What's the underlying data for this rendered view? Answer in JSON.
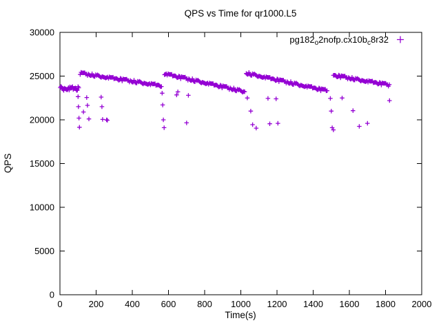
{
  "page": {
    "title": "QPS vs Time for qr1000.L5"
  },
  "chart_data": {
    "type": "scatter",
    "title": "QPS vs Time for qr1000.L5",
    "xlabel": "Time(s)",
    "ylabel": "QPS",
    "xlim": [
      0,
      2000
    ],
    "ylim": [
      0,
      30000
    ],
    "xticks": [
      0,
      200,
      400,
      600,
      800,
      1000,
      1200,
      1400,
      1600,
      1800,
      2000
    ],
    "yticks": [
      0,
      5000,
      10000,
      15000,
      20000,
      25000,
      30000
    ],
    "grid": false,
    "legend": {
      "label": "pg182_o2nofp.cx10b_c8r32",
      "parts": [
        {
          "t": "pg182",
          "sub": false
        },
        {
          "t": "o",
          "sub": true
        },
        {
          "t": "2nofp.cx10b",
          "sub": false
        },
        {
          "t": "c",
          "sub": true
        },
        {
          "t": "8r32",
          "sub": false
        }
      ],
      "position": "top-right-inside"
    },
    "marker": {
      "shape": "plus",
      "color": "#9400D3",
      "size": 6.5
    },
    "jitter": [
      40,
      -110,
      70,
      140,
      -60,
      -140,
      20,
      90,
      -30,
      120,
      -90,
      0,
      60,
      -130,
      110,
      -20,
      80,
      -70,
      130,
      -40,
      10,
      -100,
      50
    ],
    "series": [
      {
        "name": "pg182_o2nofp.cx10b_c8r32",
        "trend_segments": [
          {
            "x0": 2,
            "x1": 100,
            "y0": 23600,
            "y1": 23550,
            "n": 14,
            "passes": 2,
            "jitter_scale": 1.8
          },
          {
            "x0": 112,
            "x1": 556,
            "y0": 25320,
            "y1": 23900,
            "n": 45,
            "passes": 2,
            "jitter_scale": 1.0
          },
          {
            "x0": 578,
            "x1": 1016,
            "y0": 25250,
            "y1": 23230,
            "n": 45,
            "passes": 2,
            "jitter_scale": 1.0
          },
          {
            "x0": 1030,
            "x1": 1472,
            "y0": 25320,
            "y1": 23320,
            "n": 45,
            "passes": 2,
            "jitter_scale": 1.0
          },
          {
            "x0": 1512,
            "x1": 1816,
            "y0": 25080,
            "y1": 23980,
            "n": 32,
            "passes": 2,
            "jitter_scale": 1.0
          }
        ],
        "outliers": [
          [
            100,
            22650
          ],
          [
            102,
            21500
          ],
          [
            105,
            20200
          ],
          [
            108,
            19150
          ],
          [
            130,
            20900
          ],
          [
            148,
            22550
          ],
          [
            152,
            21650
          ],
          [
            160,
            20100
          ],
          [
            228,
            22600
          ],
          [
            232,
            21500
          ],
          [
            236,
            20050
          ],
          [
            258,
            20000
          ],
          [
            262,
            19950
          ],
          [
            565,
            23050
          ],
          [
            568,
            21700
          ],
          [
            572,
            20000
          ],
          [
            576,
            19100
          ],
          [
            645,
            22850
          ],
          [
            652,
            23200
          ],
          [
            700,
            19650
          ],
          [
            710,
            22800
          ],
          [
            1036,
            22500
          ],
          [
            1055,
            21000
          ],
          [
            1065,
            19450
          ],
          [
            1085,
            19050
          ],
          [
            1150,
            22450
          ],
          [
            1160,
            19550
          ],
          [
            1195,
            22400
          ],
          [
            1205,
            19600
          ],
          [
            1495,
            22450
          ],
          [
            1500,
            21000
          ],
          [
            1505,
            19100
          ],
          [
            1512,
            18850
          ],
          [
            1560,
            22500
          ],
          [
            1620,
            21050
          ],
          [
            1655,
            19250
          ],
          [
            1700,
            19600
          ],
          [
            1822,
            22200
          ]
        ]
      }
    ]
  }
}
